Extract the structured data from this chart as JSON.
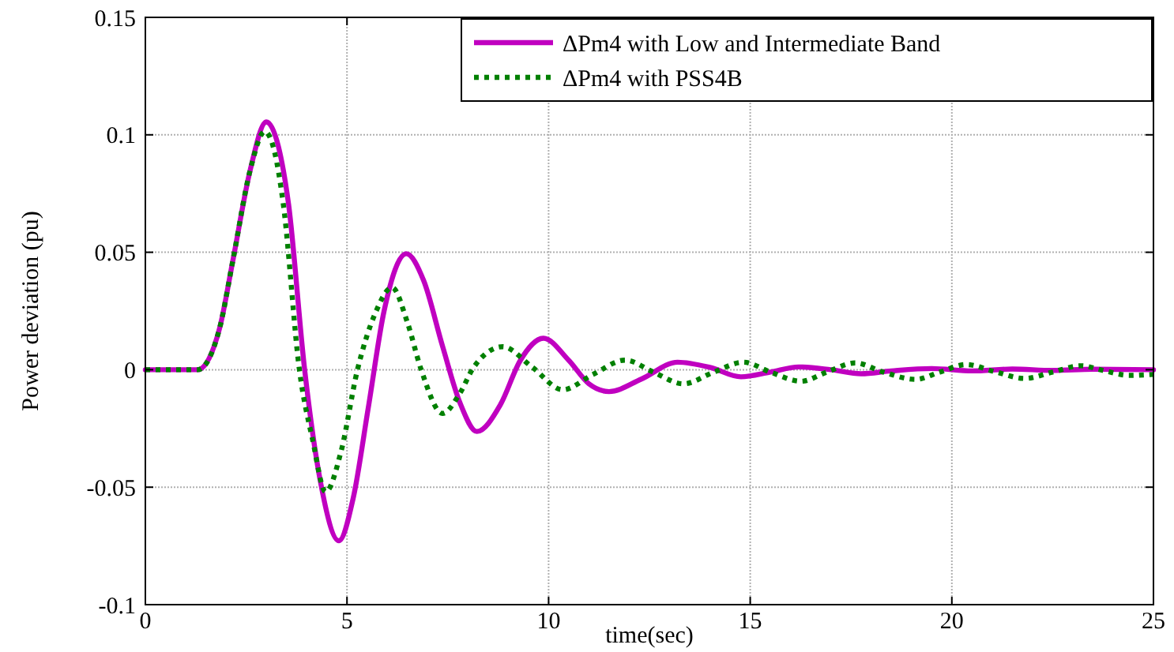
{
  "chart_data": {
    "type": "line",
    "xlabel": "time(sec)",
    "ylabel": "Power deviation (pu)",
    "xlim": [
      0,
      25
    ],
    "ylim": [
      -0.1,
      0.15
    ],
    "xticks": [
      0,
      5,
      10,
      15,
      20,
      25
    ],
    "yticks": [
      -0.1,
      -0.05,
      0,
      0.05,
      0.1,
      0.15
    ],
    "grid": true,
    "legend": "top right",
    "series": [
      {
        "name": "ΔPm4 with Low and Intermediate Band",
        "color": "#c000c0",
        "line_style": "solid",
        "x": [
          0,
          1.3,
          1.84,
          2.17,
          2.6,
          3.0,
          3.3,
          3.55,
          3.95,
          4.34,
          4.8,
          5.15,
          5.53,
          5.92,
          6.47,
          6.9,
          7.37,
          7.8,
          8.22,
          8.8,
          9.3,
          9.87,
          10.5,
          11.0,
          11.5,
          12.3,
          13.2,
          14.0,
          14.77,
          15.5,
          16.2,
          17.0,
          17.75,
          18.5,
          19.5,
          20.5,
          21.5,
          22.5,
          23.5,
          25
        ],
        "values": [
          0,
          0,
          0.0176,
          0.0465,
          0.085,
          0.1055,
          0.095,
          0.0706,
          0,
          -0.0475,
          -0.0728,
          -0.055,
          -0.016,
          0.025,
          0.0494,
          0.038,
          0.01,
          -0.014,
          -0.0263,
          -0.015,
          0.004,
          0.0134,
          0.004,
          -0.006,
          -0.0093,
          -0.004,
          0.0032,
          0.001,
          -0.003,
          -0.001,
          0.0012,
          0,
          -0.0017,
          -0.0005,
          0.0005,
          -0.0005,
          0.0003,
          -0.0003,
          0.0002,
          0
        ]
      },
      {
        "name": "ΔPm4 with PSS4B",
        "color": "#008000",
        "line_style": "dotted",
        "x": [
          0,
          1.3,
          1.84,
          2.17,
          2.6,
          2.96,
          3.2,
          3.42,
          3.82,
          4.15,
          4.47,
          4.85,
          5.26,
          5.7,
          6.12,
          6.5,
          6.84,
          7.37,
          7.8,
          8.14,
          8.86,
          9.6,
          10.35,
          11.1,
          11.9,
          12.6,
          13.34,
          14.1,
          14.83,
          15.5,
          16.26,
          16.9,
          17.6,
          18.3,
          19.1,
          19.7,
          20.35,
          21.1,
          21.8,
          22.5,
          23.2,
          23.8,
          24.4,
          25
        ],
        "values": [
          0,
          0,
          0.0176,
          0.0465,
          0.085,
          0.1014,
          0.093,
          0.0706,
          0,
          -0.03,
          -0.052,
          -0.035,
          0,
          0.024,
          0.035,
          0.02,
          0,
          -0.0186,
          -0.01,
          0.001,
          0.0098,
          0.001,
          -0.0085,
          -0.002,
          0.0041,
          -0.001,
          -0.006,
          -0.001,
          0.0032,
          -0.001,
          -0.0049,
          -0.001,
          0.0029,
          -0.001,
          -0.0041,
          -0.001,
          0.0022,
          -0.001,
          -0.0037,
          -0.001,
          0.0017,
          -0.0005,
          -0.0024,
          -0.002
        ]
      }
    ]
  }
}
